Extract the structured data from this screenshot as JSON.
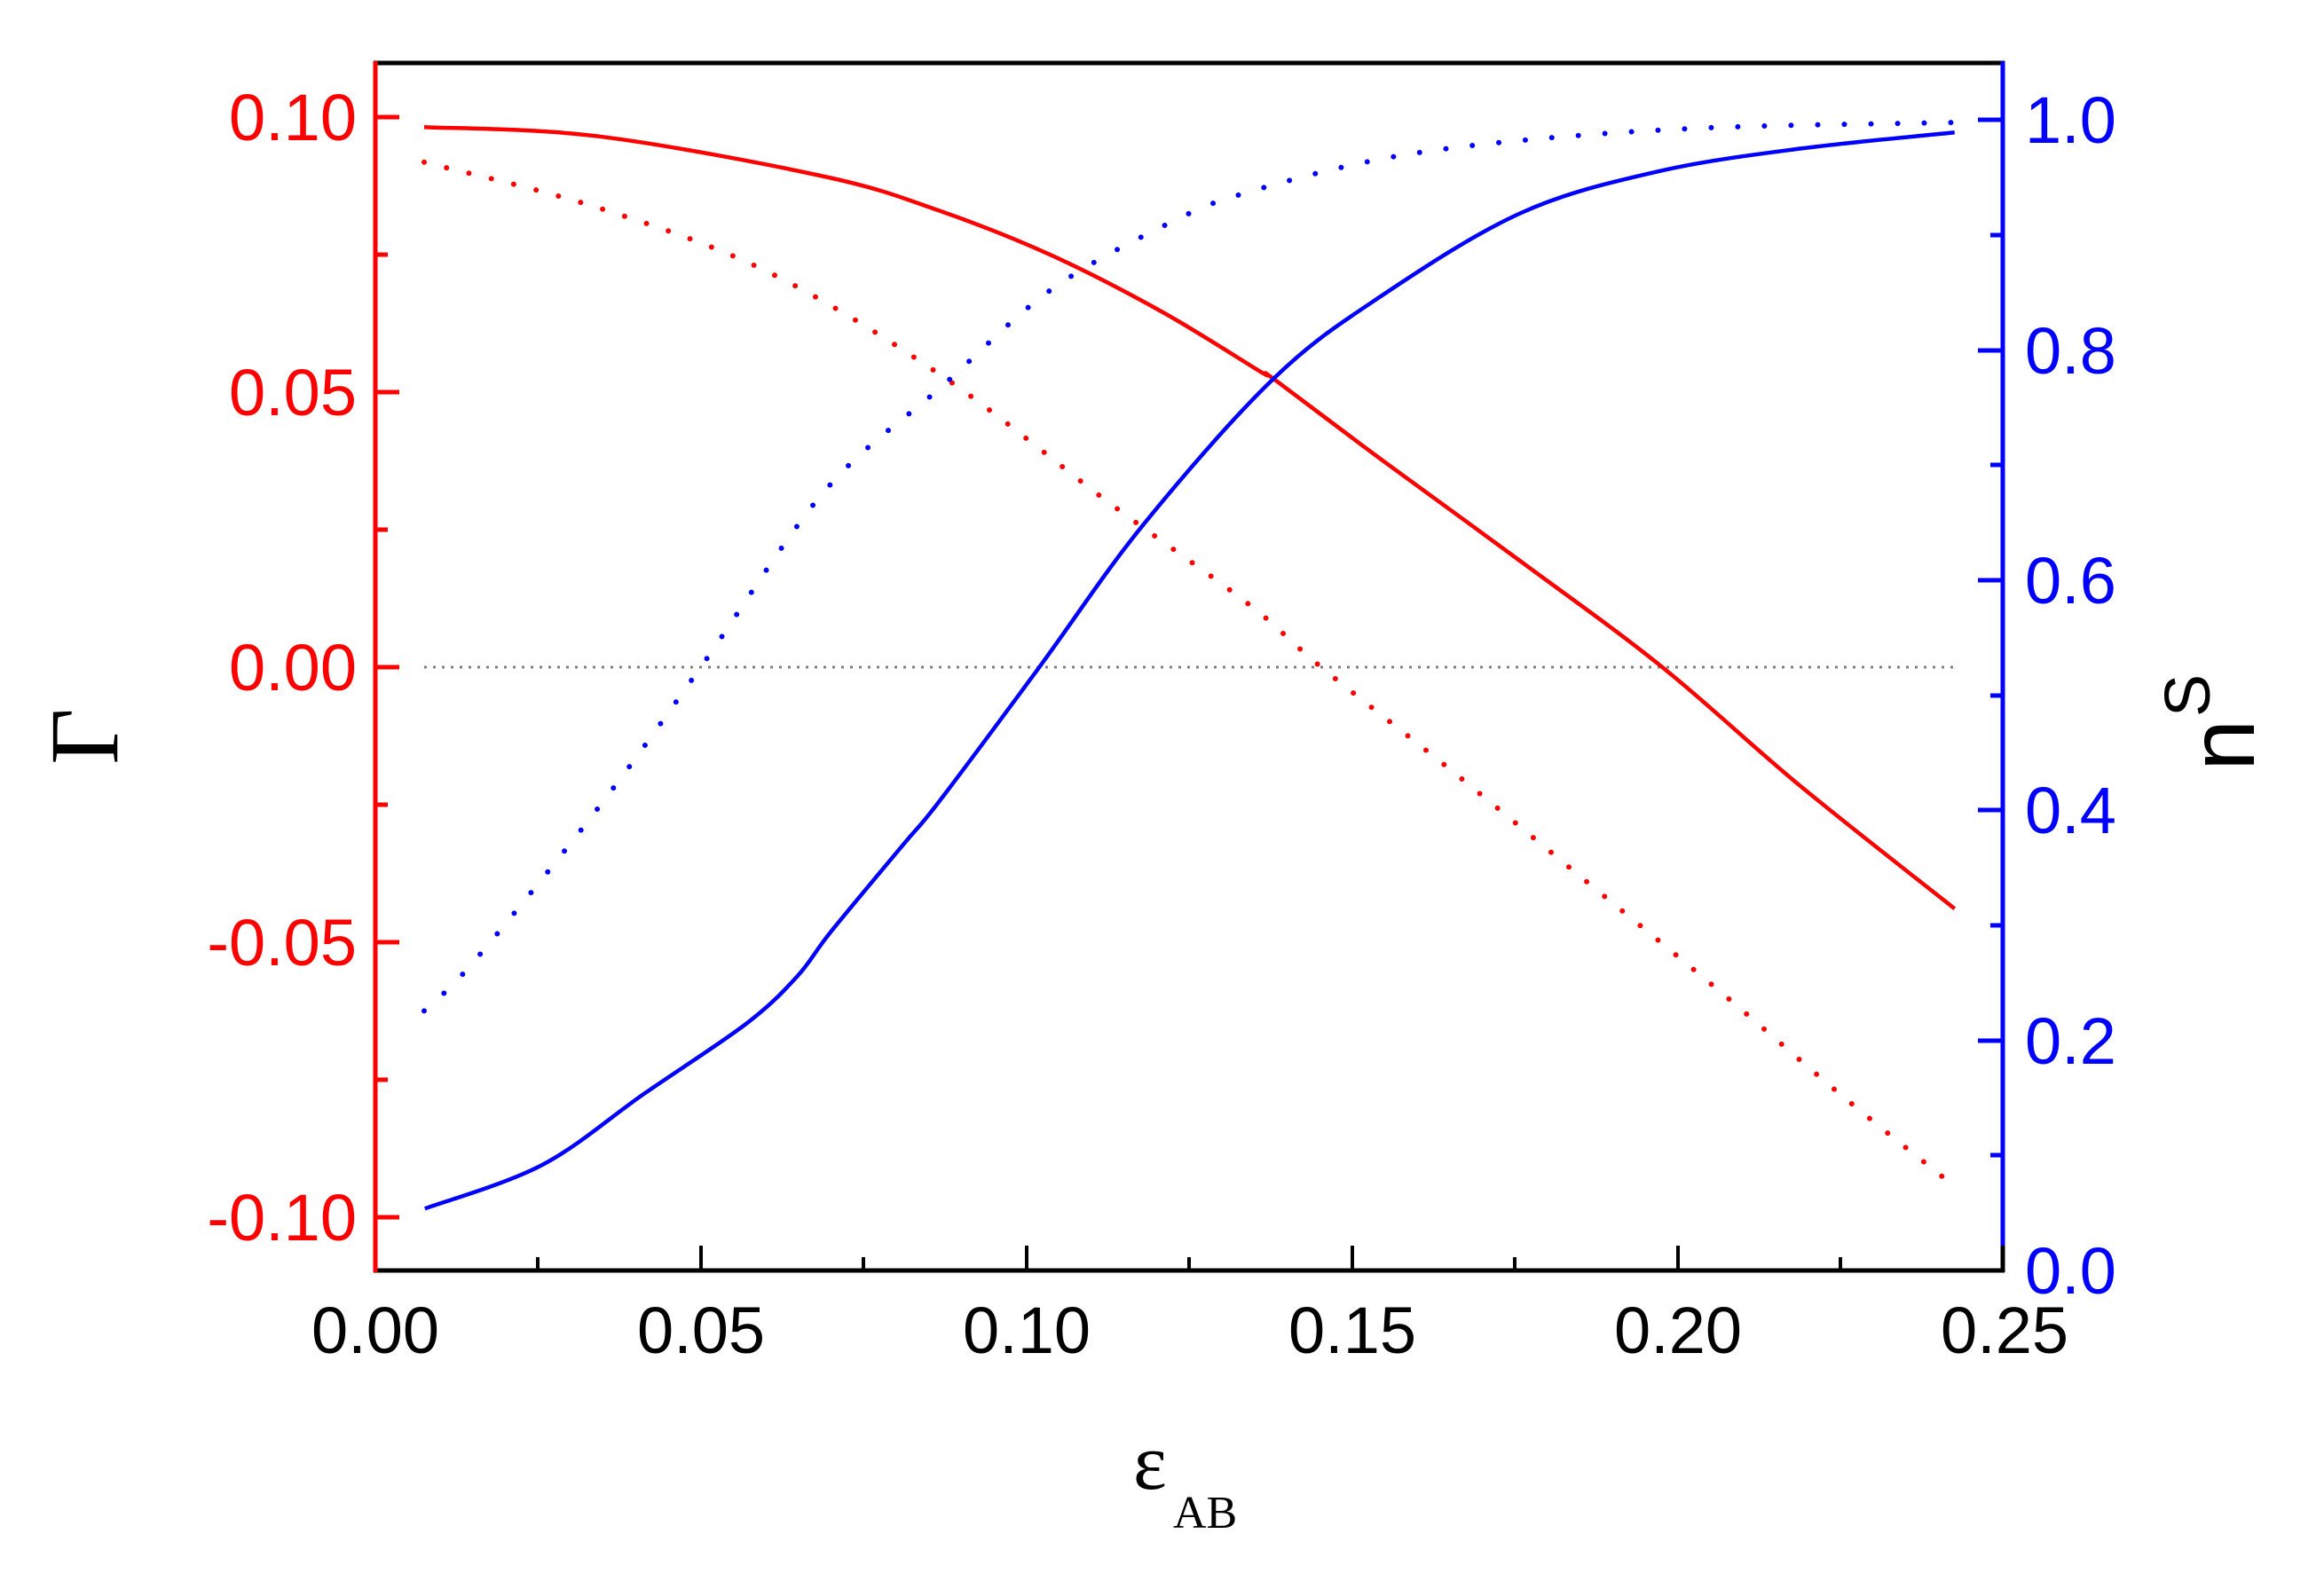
{
  "chart_data": {
    "type": "line",
    "title": "",
    "xlabel": "ε_AB",
    "xlabel_main": "ε",
    "xlabel_sub": "AB",
    "ylabel_left": "Γ",
    "ylabel_right": "n_S",
    "ylabel_right_main": "n",
    "ylabel_right_sub": "S",
    "xlim": [
      0.0,
      0.25
    ],
    "ylim_left": [
      -0.11,
      0.11
    ],
    "ylim_right": [
      0.0,
      1.05
    ],
    "x_ticks": [
      "0.00",
      "0.05",
      "0.10",
      "0.15",
      "0.20",
      "0.25"
    ],
    "y_left_ticks": [
      "0.10",
      "0.05",
      "0.00",
      "-0.05",
      "-0.10"
    ],
    "y_right_ticks": [
      "1.0",
      "0.8",
      "0.6",
      "0.4",
      "0.2",
      "0.0"
    ],
    "grid": false,
    "legend": null,
    "reference_line": {
      "axis": "left",
      "y": 0.0,
      "style": "dotted",
      "color": "#808080"
    },
    "colors": {
      "left_axis": "#ff0000",
      "right_axis": "#0000ff",
      "frame": "#000000"
    },
    "series": [
      {
        "name": "Gamma (solid)",
        "axis": "left",
        "color": "#ff0000",
        "style": "solid",
        "x": [
          0.0075,
          0.0343,
          0.069,
          0.0866,
          0.104,
          0.121,
          0.136,
          0.138,
          0.1546,
          0.176,
          0.1977,
          0.2188,
          0.2426
        ],
        "y": [
          0.0982,
          0.0965,
          0.0892,
          0.083,
          0.0748,
          0.0645,
          0.0537,
          0.0524,
          0.0377,
          0.0192,
          0.0,
          -0.0215,
          -0.0439
        ]
      },
      {
        "name": "Gamma (dotted)",
        "axis": "left",
        "color": "#ff0000",
        "style": "dotted",
        "x": [
          0.0075,
          0.0343,
          0.0604,
          0.087,
          0.1126,
          0.134,
          0.1453,
          0.165,
          0.1866,
          0.2066,
          0.2259,
          0.2426
        ],
        "y": [
          0.0918,
          0.0835,
          0.0718,
          0.053,
          0.03,
          0.0116,
          0.0,
          -0.0185,
          -0.0395,
          -0.059,
          -0.0785,
          -0.0944
        ]
      },
      {
        "name": "n_S (solid)",
        "axis": "right",
        "color": "#0000ff",
        "style": "solid",
        "x": [
          0.0076,
          0.0256,
          0.0413,
          0.057,
          0.0648,
          0.07,
          0.081,
          0.0866,
          0.102,
          0.118,
          0.138,
          0.1546,
          0.176,
          0.197,
          0.219,
          0.2426
        ],
        "y": [
          0.053,
          0.091,
          0.153,
          0.214,
          0.255,
          0.294,
          0.369,
          0.407,
          0.524,
          0.648,
          0.775,
          0.847,
          0.919,
          0.955,
          0.975,
          0.989
        ]
      },
      {
        "name": "n_S (dotted)",
        "axis": "right",
        "color": "#0000ff",
        "style": "dotted",
        "x": [
          0.0075,
          0.0153,
          0.0343,
          0.05,
          0.069,
          0.087,
          0.104,
          0.123,
          0.1346,
          0.1546,
          0.176,
          0.2045,
          0.2426
        ],
        "y": [
          0.225,
          0.269,
          0.402,
          0.524,
          0.677,
          0.768,
          0.853,
          0.913,
          0.938,
          0.966,
          0.982,
          0.993,
          0.9977
        ]
      }
    ]
  }
}
